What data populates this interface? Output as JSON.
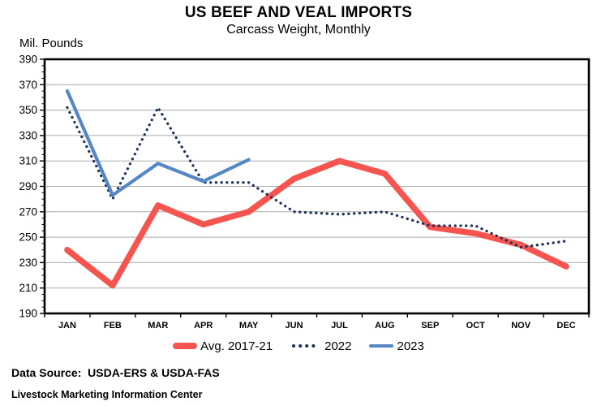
{
  "chart": {
    "title": "US BEEF AND VEAL IMPORTS",
    "subtitle": "Carcass Weight, Monthly",
    "y_axis_title": "Mil. Pounds"
  },
  "chart_data": {
    "type": "line",
    "title": "US BEEF AND VEAL IMPORTS",
    "subtitle": "Carcass Weight, Monthly",
    "ylabel": "Mil. Pounds",
    "xlabel": "",
    "categories": [
      "JAN",
      "FEB",
      "MAR",
      "APR",
      "MAY",
      "JUN",
      "JUL",
      "AUG",
      "SEP",
      "OCT",
      "NOV",
      "DEC"
    ],
    "ylim": [
      190,
      390
    ],
    "y_tick_step": 20,
    "y_ticks": [
      390,
      370,
      350,
      330,
      310,
      290,
      270,
      250,
      230,
      210,
      190
    ],
    "grid": "horizontal-on",
    "legend_position": "bottom",
    "series": [
      {
        "name": "Avg. 2017-21",
        "style": "thick-solid",
        "color": "#F6554F",
        "values": [
          240,
          212,
          275,
          260,
          270,
          296,
          310,
          300,
          258,
          253,
          244,
          227
        ]
      },
      {
        "name": "2022",
        "style": "dotted",
        "color": "#1B3159",
        "values": [
          352,
          280,
          352,
          293,
          293,
          270,
          268,
          270,
          259,
          259,
          242,
          247
        ]
      },
      {
        "name": "2023",
        "style": "solid",
        "color": "#5586C6",
        "values": [
          365,
          283,
          308,
          294,
          311,
          null,
          null,
          null,
          null,
          null,
          null,
          null
        ]
      }
    ]
  },
  "footer": {
    "data_source": "Data Source:  USDA-ERS & USDA-FAS",
    "credit": "Livestock Marketing Information Center"
  },
  "colors": {
    "grid": "#ABABAB",
    "axis": "#000000",
    "text": "#000000"
  }
}
